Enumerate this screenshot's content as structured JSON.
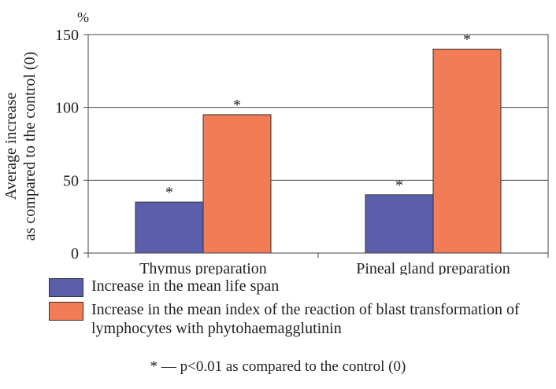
{
  "chart_data": {
    "type": "bar",
    "categories": [
      "Thymus preparation",
      "Pineal gland preparation"
    ],
    "series": [
      {
        "name": "Increase in the mean life span",
        "values": [
          35,
          40
        ],
        "color": "#5b5eab",
        "significance": [
          "*",
          "*"
        ]
      },
      {
        "name": "Increase in the mean index of the reaction of blast transformation of lymphocytes with phytohaemagglutinin",
        "values": [
          95,
          140
        ],
        "color": "#f17c55",
        "significance": [
          "*",
          "*"
        ]
      }
    ],
    "unit_label": "%",
    "ylabel_line1": "Average increase",
    "ylabel_line2": "as compared to the control (0)",
    "ylim": [
      0,
      150
    ],
    "yticks": [
      0,
      50,
      100,
      150
    ],
    "grid": true,
    "legend_position": "bottom",
    "footnote": "* — p<0.01 as compared to the control (0)"
  }
}
